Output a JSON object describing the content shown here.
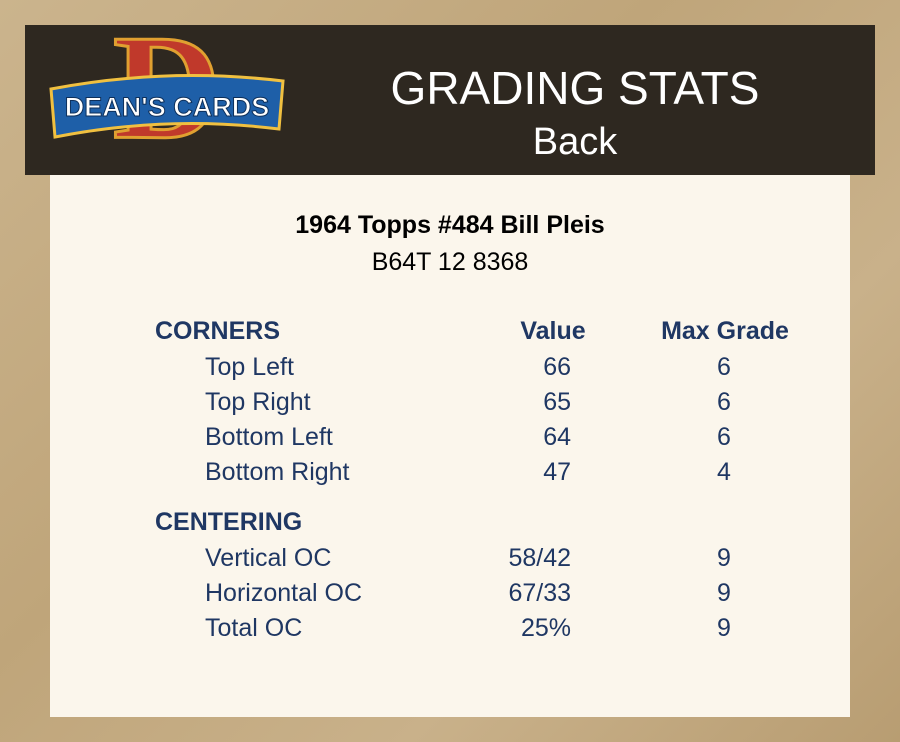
{
  "header": {
    "logo_letter": "D",
    "logo_text": "DEAN'S CARDS",
    "title": "GRADING STATS",
    "subtitle": "Back"
  },
  "card": {
    "title": "1964 Topps #484 Bill Pleis",
    "code": "B64T 12 8368"
  },
  "columns": [
    "Value",
    "Max Grade"
  ],
  "sections": [
    {
      "label": "CORNERS",
      "rows": [
        [
          "Top Left",
          "66",
          "6"
        ],
        [
          "Top Right",
          "65",
          "6"
        ],
        [
          "Bottom Left",
          "64",
          "6"
        ],
        [
          "Bottom Right",
          "47",
          "4"
        ]
      ]
    },
    {
      "label": "CENTERING",
      "rows": [
        [
          "Vertical OC",
          "58/42",
          "9"
        ],
        [
          "Horizontal OC",
          "67/33",
          "9"
        ],
        [
          "Total OC",
          "25%",
          "9"
        ]
      ]
    }
  ]
}
